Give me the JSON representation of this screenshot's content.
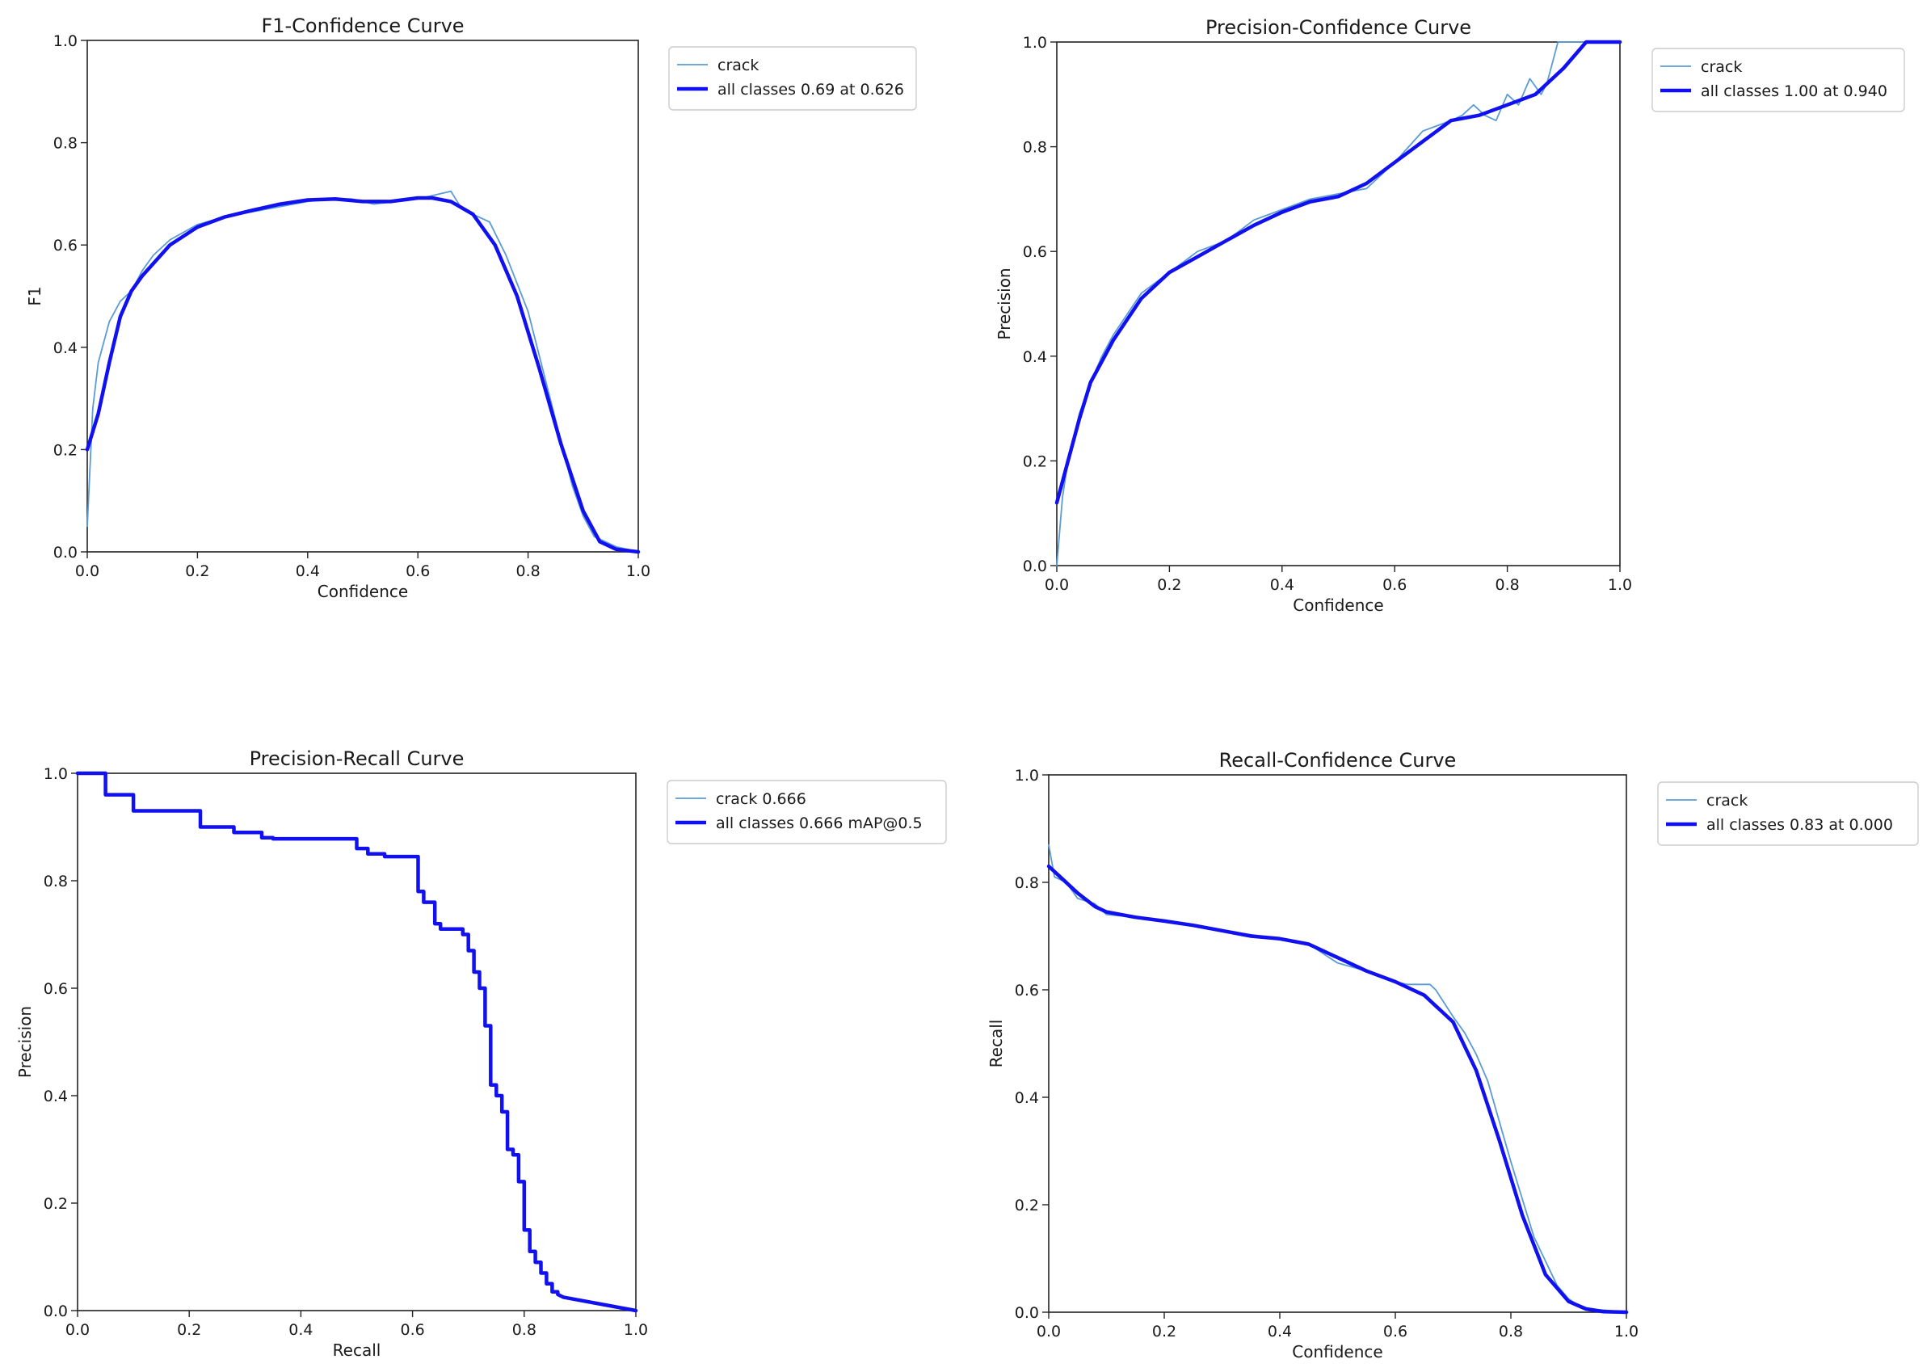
{
  "colors": {
    "thin_series": "#5b9bd5",
    "thick_series": "#1010f0",
    "axes": "#222222",
    "legend_border": "#cccccc"
  },
  "chart_data": [
    {
      "type": "line",
      "title": "F1-Confidence Curve",
      "xlabel": "Confidence",
      "ylabel": "F1",
      "xlim": [
        0,
        1
      ],
      "ylim": [
        0,
        1
      ],
      "xticks": [
        "0.0",
        "0.2",
        "0.4",
        "0.6",
        "0.8",
        "1.0"
      ],
      "yticks": [
        "0.0",
        "0.2",
        "0.4",
        "0.6",
        "0.8",
        "1.0"
      ],
      "grid": false,
      "legend_position": "outside-right",
      "series": [
        {
          "name": "crack",
          "style": "thin",
          "x": [
            0.0,
            0.01,
            0.02,
            0.04,
            0.06,
            0.08,
            0.1,
            0.12,
            0.15,
            0.2,
            0.25,
            0.3,
            0.35,
            0.4,
            0.44,
            0.48,
            0.52,
            0.56,
            0.6,
            0.64,
            0.66,
            0.68,
            0.7,
            0.73,
            0.76,
            0.8,
            0.84,
            0.88,
            0.9,
            0.92,
            0.94,
            0.96,
            0.98,
            1.0
          ],
          "y": [
            0.05,
            0.28,
            0.37,
            0.45,
            0.49,
            0.51,
            0.55,
            0.58,
            0.61,
            0.64,
            0.655,
            0.665,
            0.675,
            0.685,
            0.69,
            0.69,
            0.68,
            0.685,
            0.69,
            0.7,
            0.705,
            0.67,
            0.66,
            0.645,
            0.58,
            0.47,
            0.3,
            0.13,
            0.07,
            0.03,
            0.02,
            0.01,
            0.005,
            0.0
          ]
        },
        {
          "name": "all classes 0.69 at 0.626",
          "style": "thick",
          "x": [
            0.0,
            0.02,
            0.04,
            0.06,
            0.08,
            0.1,
            0.15,
            0.2,
            0.25,
            0.3,
            0.35,
            0.4,
            0.45,
            0.5,
            0.55,
            0.6,
            0.626,
            0.66,
            0.7,
            0.74,
            0.78,
            0.82,
            0.86,
            0.9,
            0.93,
            0.96,
            1.0
          ],
          "y": [
            0.2,
            0.27,
            0.37,
            0.46,
            0.51,
            0.54,
            0.6,
            0.635,
            0.655,
            0.668,
            0.68,
            0.688,
            0.69,
            0.685,
            0.685,
            0.692,
            0.692,
            0.685,
            0.66,
            0.6,
            0.5,
            0.36,
            0.21,
            0.08,
            0.02,
            0.005,
            0.0
          ]
        }
      ]
    },
    {
      "type": "line",
      "title": "Precision-Confidence Curve",
      "xlabel": "Confidence",
      "ylabel": "Precision",
      "xlim": [
        0,
        1
      ],
      "ylim": [
        0,
        1
      ],
      "xticks": [
        "0.0",
        "0.2",
        "0.4",
        "0.6",
        "0.8",
        "1.0"
      ],
      "yticks": [
        "0.0",
        "0.2",
        "0.4",
        "0.6",
        "0.8",
        "1.0"
      ],
      "grid": false,
      "legend_position": "outside-right",
      "series": [
        {
          "name": "crack",
          "style": "thin",
          "x": [
            0.0,
            0.01,
            0.02,
            0.04,
            0.06,
            0.08,
            0.1,
            0.15,
            0.2,
            0.25,
            0.3,
            0.35,
            0.4,
            0.45,
            0.5,
            0.55,
            0.6,
            0.65,
            0.7,
            0.72,
            0.74,
            0.76,
            0.78,
            0.8,
            0.82,
            0.84,
            0.86,
            0.87,
            0.88,
            0.89,
            0.9,
            0.92,
            0.95,
            1.0
          ],
          "y": [
            0.0,
            0.13,
            0.2,
            0.29,
            0.35,
            0.4,
            0.44,
            0.52,
            0.56,
            0.6,
            0.62,
            0.66,
            0.68,
            0.7,
            0.71,
            0.72,
            0.77,
            0.83,
            0.85,
            0.86,
            0.88,
            0.86,
            0.85,
            0.9,
            0.88,
            0.93,
            0.9,
            0.92,
            0.96,
            1.0,
            1.0,
            1.0,
            1.0,
            1.0
          ]
        },
        {
          "name": "all classes 1.00 at 0.940",
          "style": "thick",
          "x": [
            0.0,
            0.02,
            0.04,
            0.06,
            0.08,
            0.1,
            0.15,
            0.2,
            0.25,
            0.3,
            0.35,
            0.4,
            0.45,
            0.5,
            0.55,
            0.6,
            0.65,
            0.7,
            0.75,
            0.8,
            0.85,
            0.9,
            0.94,
            1.0
          ],
          "y": [
            0.12,
            0.2,
            0.28,
            0.35,
            0.39,
            0.43,
            0.51,
            0.56,
            0.59,
            0.62,
            0.65,
            0.675,
            0.695,
            0.705,
            0.73,
            0.77,
            0.81,
            0.85,
            0.86,
            0.88,
            0.9,
            0.95,
            1.0,
            1.0
          ]
        }
      ]
    },
    {
      "type": "line",
      "title": "Precision-Recall Curve",
      "xlabel": "Recall",
      "ylabel": "Precision",
      "xlim": [
        0,
        1
      ],
      "ylim": [
        0,
        1
      ],
      "xticks": [
        "0.0",
        "0.2",
        "0.4",
        "0.6",
        "0.8",
        "1.0"
      ],
      "yticks": [
        "0.0",
        "0.2",
        "0.4",
        "0.6",
        "0.8",
        "1.0"
      ],
      "grid": false,
      "legend_position": "outside-right",
      "series": [
        {
          "name": "crack 0.666",
          "style": "thin",
          "step": true,
          "x": [
            0.0,
            0.05,
            0.05,
            0.1,
            0.1,
            0.22,
            0.22,
            0.28,
            0.28,
            0.33,
            0.33,
            0.35,
            0.35,
            0.5,
            0.5,
            0.52,
            0.52,
            0.55,
            0.55,
            0.61,
            0.61,
            0.62,
            0.62,
            0.64,
            0.64,
            0.65,
            0.65,
            0.69,
            0.69,
            0.7,
            0.7,
            0.71,
            0.71,
            0.72,
            0.72,
            0.73,
            0.73,
            0.74,
            0.74,
            0.75,
            0.75,
            0.76,
            0.76,
            0.77,
            0.77,
            0.78,
            0.78,
            0.79,
            0.79,
            0.8,
            0.8,
            0.81,
            0.81,
            0.82,
            0.82,
            0.83,
            0.83,
            0.84,
            0.84,
            0.85,
            0.85,
            0.86,
            0.86,
            0.87,
            1.0
          ],
          "y": [
            1.0,
            1.0,
            0.96,
            0.96,
            0.93,
            0.93,
            0.9,
            0.9,
            0.89,
            0.89,
            0.88,
            0.88,
            0.878,
            0.878,
            0.86,
            0.86,
            0.85,
            0.85,
            0.845,
            0.845,
            0.78,
            0.78,
            0.76,
            0.76,
            0.72,
            0.72,
            0.71,
            0.71,
            0.7,
            0.7,
            0.67,
            0.67,
            0.63,
            0.63,
            0.6,
            0.6,
            0.53,
            0.53,
            0.42,
            0.42,
            0.4,
            0.4,
            0.37,
            0.37,
            0.3,
            0.3,
            0.29,
            0.29,
            0.24,
            0.24,
            0.15,
            0.15,
            0.11,
            0.11,
            0.09,
            0.09,
            0.07,
            0.07,
            0.05,
            0.05,
            0.035,
            0.035,
            0.03,
            0.025,
            0.0
          ]
        },
        {
          "name": "all classes 0.666 mAP@0.5",
          "style": "thick",
          "step": true,
          "x": [
            0.0,
            0.05,
            0.05,
            0.1,
            0.1,
            0.22,
            0.22,
            0.28,
            0.28,
            0.33,
            0.33,
            0.35,
            0.35,
            0.5,
            0.5,
            0.52,
            0.52,
            0.55,
            0.55,
            0.61,
            0.61,
            0.62,
            0.62,
            0.64,
            0.64,
            0.65,
            0.65,
            0.69,
            0.69,
            0.7,
            0.7,
            0.71,
            0.71,
            0.72,
            0.72,
            0.73,
            0.73,
            0.74,
            0.74,
            0.75,
            0.75,
            0.76,
            0.76,
            0.77,
            0.77,
            0.78,
            0.78,
            0.79,
            0.79,
            0.8,
            0.8,
            0.81,
            0.81,
            0.82,
            0.82,
            0.83,
            0.83,
            0.84,
            0.84,
            0.85,
            0.85,
            0.86,
            0.86,
            0.87,
            1.0
          ],
          "y": [
            1.0,
            1.0,
            0.96,
            0.96,
            0.93,
            0.93,
            0.9,
            0.9,
            0.89,
            0.89,
            0.88,
            0.88,
            0.878,
            0.878,
            0.86,
            0.86,
            0.85,
            0.85,
            0.845,
            0.845,
            0.78,
            0.78,
            0.76,
            0.76,
            0.72,
            0.72,
            0.71,
            0.71,
            0.7,
            0.7,
            0.67,
            0.67,
            0.63,
            0.63,
            0.6,
            0.6,
            0.53,
            0.53,
            0.42,
            0.42,
            0.4,
            0.4,
            0.37,
            0.37,
            0.3,
            0.3,
            0.29,
            0.29,
            0.24,
            0.24,
            0.15,
            0.15,
            0.11,
            0.11,
            0.09,
            0.09,
            0.07,
            0.07,
            0.05,
            0.05,
            0.035,
            0.035,
            0.03,
            0.025,
            0.0
          ]
        }
      ]
    },
    {
      "type": "line",
      "title": "Recall-Confidence Curve",
      "xlabel": "Confidence",
      "ylabel": "Recall",
      "xlim": [
        0,
        1
      ],
      "ylim": [
        0,
        1
      ],
      "xticks": [
        "0.0",
        "0.2",
        "0.4",
        "0.6",
        "0.8",
        "1.0"
      ],
      "yticks": [
        "0.0",
        "0.2",
        "0.4",
        "0.6",
        "0.8",
        "1.0"
      ],
      "grid": false,
      "legend_position": "outside-right",
      "series": [
        {
          "name": "crack",
          "style": "thin",
          "x": [
            0.0,
            0.01,
            0.03,
            0.05,
            0.08,
            0.1,
            0.15,
            0.2,
            0.3,
            0.4,
            0.45,
            0.5,
            0.55,
            0.6,
            0.62,
            0.66,
            0.67,
            0.7,
            0.72,
            0.74,
            0.76,
            0.8,
            0.84,
            0.88,
            0.9,
            0.92,
            0.95,
            1.0
          ],
          "y": [
            0.87,
            0.81,
            0.8,
            0.77,
            0.76,
            0.74,
            0.735,
            0.73,
            0.71,
            0.695,
            0.685,
            0.65,
            0.635,
            0.615,
            0.61,
            0.61,
            0.6,
            0.55,
            0.52,
            0.48,
            0.43,
            0.28,
            0.14,
            0.05,
            0.025,
            0.01,
            0.005,
            0.0
          ]
        },
        {
          "name": "all classes 0.83 at 0.000",
          "style": "thick",
          "x": [
            0.0,
            0.02,
            0.05,
            0.08,
            0.1,
            0.15,
            0.2,
            0.25,
            0.3,
            0.35,
            0.4,
            0.45,
            0.5,
            0.55,
            0.6,
            0.65,
            0.7,
            0.74,
            0.78,
            0.82,
            0.86,
            0.9,
            0.93,
            0.96,
            1.0
          ],
          "y": [
            0.83,
            0.81,
            0.78,
            0.755,
            0.745,
            0.735,
            0.728,
            0.72,
            0.71,
            0.7,
            0.695,
            0.685,
            0.66,
            0.635,
            0.615,
            0.59,
            0.54,
            0.45,
            0.32,
            0.18,
            0.07,
            0.02,
            0.006,
            0.001,
            0.0
          ]
        }
      ]
    }
  ]
}
